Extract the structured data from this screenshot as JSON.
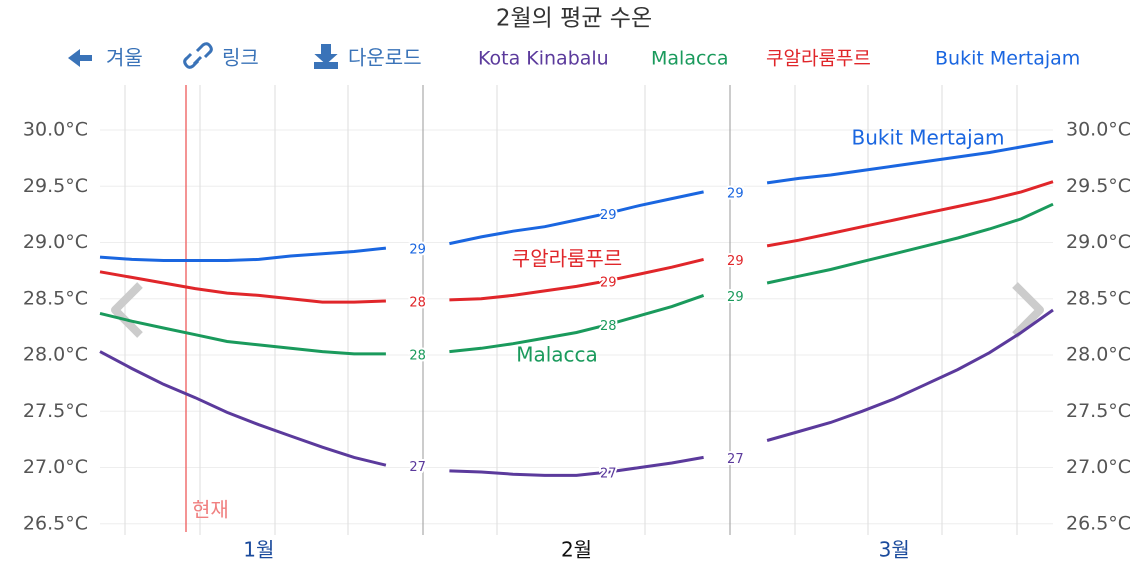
{
  "chart_data": {
    "type": "line",
    "title": "2월의 평균 수온",
    "toolbar": [
      "겨울",
      "링크",
      "다운로드"
    ],
    "annotation": "현재",
    "categories": [
      null,
      null,
      null,
      null,
      null,
      "1월",
      null,
      null,
      null,
      null,
      null,
      null,
      null,
      null,
      null,
      "2월",
      null,
      null,
      null,
      null,
      null,
      null,
      null,
      null,
      null,
      "3월",
      null,
      null,
      null,
      null,
      null
    ],
    "ylim": [
      26.4,
      30.4
    ],
    "yticks": [
      {
        "value": 26.5,
        "label": "26.5°C"
      },
      {
        "value": 27,
        "label": "27.0°C"
      },
      {
        "value": 27.5,
        "label": "27.5°C"
      },
      {
        "value": 28,
        "label": "28.0°C"
      },
      {
        "value": 28.5,
        "label": "28.5°C"
      },
      {
        "value": 29,
        "label": "29.0°C"
      },
      {
        "value": 29.5,
        "label": "29.5°C"
      },
      {
        "value": 30,
        "label": "30.0°C"
      }
    ],
    "grid": true,
    "series": [
      {
        "name": "Kota Kinabalu",
        "color": "#5b3a9c",
        "values": [
          28.03,
          27.88,
          27.74,
          27.62,
          27.49,
          27.38,
          27.28,
          27.18,
          27.09,
          27.02,
          null,
          26.97,
          26.96,
          26.94,
          26.93,
          26.93,
          26.96,
          27.0,
          27.04,
          27.09,
          null,
          27.24,
          27.32,
          27.4,
          27.5,
          27.61,
          27.74,
          27.87,
          28.02,
          28.2,
          28.4
        ],
        "value_labels": [
          null,
          null,
          null,
          null,
          null,
          null,
          null,
          null,
          null,
          "27",
          null,
          null,
          null,
          null,
          null,
          null,
          "27",
          null,
          null,
          "27",
          null,
          null,
          null,
          null,
          null,
          null,
          null,
          null,
          null,
          null,
          null
        ]
      },
      {
        "name": "Malacca",
        "color": "#1a9a5c",
        "values": [
          28.37,
          28.3,
          28.24,
          28.18,
          28.12,
          28.09,
          28.06,
          28.03,
          28.01,
          28.01,
          null,
          28.03,
          28.06,
          28.1,
          28.15,
          28.2,
          28.27,
          28.35,
          28.43,
          28.53,
          null,
          28.64,
          28.7,
          28.76,
          28.83,
          28.9,
          28.97,
          29.04,
          29.12,
          29.21,
          29.34
        ],
        "value_labels": [
          null,
          null,
          null,
          null,
          null,
          null,
          null,
          null,
          null,
          "28",
          null,
          null,
          null,
          null,
          null,
          null,
          "28",
          null,
          null,
          "29",
          null,
          null,
          null,
          null,
          null,
          null,
          null,
          null,
          null,
          null,
          null
        ]
      },
      {
        "name": "쿠알라룸푸르",
        "color": "#e0262a",
        "values": [
          28.74,
          28.69,
          28.64,
          28.59,
          28.55,
          28.53,
          28.5,
          28.47,
          28.47,
          28.48,
          null,
          28.49,
          28.5,
          28.53,
          28.57,
          28.61,
          28.66,
          28.72,
          28.78,
          28.85,
          null,
          28.97,
          29.02,
          29.08,
          29.14,
          29.2,
          29.26,
          29.32,
          29.38,
          29.45,
          29.54
        ],
        "value_labels": [
          null,
          null,
          null,
          null,
          null,
          null,
          null,
          null,
          null,
          "28",
          null,
          null,
          null,
          null,
          null,
          null,
          "29",
          null,
          null,
          "29",
          null,
          null,
          null,
          null,
          null,
          null,
          null,
          null,
          null,
          null,
          null
        ]
      },
      {
        "name": "Bukit Mertajam",
        "color": "#1a66e0",
        "values": [
          28.87,
          28.85,
          28.84,
          28.84,
          28.84,
          28.85,
          28.88,
          28.9,
          28.92,
          28.95,
          null,
          28.99,
          29.05,
          29.1,
          29.14,
          29.2,
          29.26,
          29.33,
          29.39,
          29.45,
          null,
          29.53,
          29.57,
          29.6,
          29.64,
          29.68,
          29.72,
          29.76,
          29.8,
          29.85,
          29.9
        ],
        "value_labels": [
          null,
          null,
          null,
          null,
          null,
          null,
          null,
          null,
          null,
          "29",
          null,
          null,
          null,
          null,
          null,
          null,
          "29",
          null,
          null,
          "29",
          null,
          null,
          null,
          null,
          null,
          null,
          null,
          null,
          null,
          null,
          null
        ]
      }
    ]
  }
}
